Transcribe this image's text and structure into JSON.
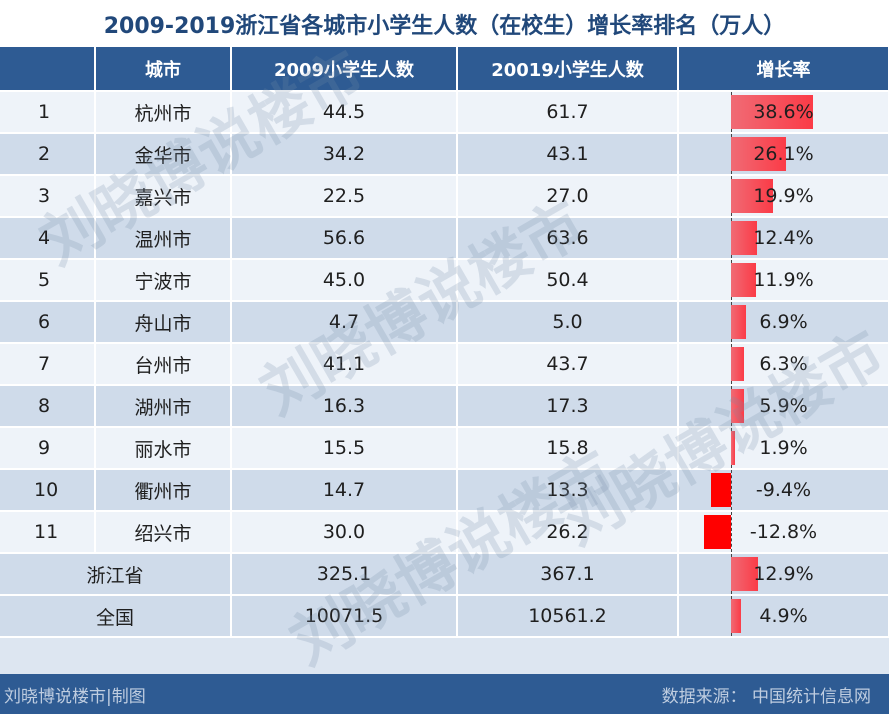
{
  "title": "2009-2019浙江省各城市小学生人数（在校生）增长率排名（万人）",
  "headers": {
    "rank": "",
    "city": "城市",
    "y2009": "2009小学生人数",
    "y2019": "20019小学生人数",
    "rate": "增长率"
  },
  "rows": [
    {
      "rank": "1",
      "city": "杭州市",
      "v2009": "44.5",
      "v2019": "61.7",
      "rate": "38.6%",
      "rate_value": 38.6
    },
    {
      "rank": "2",
      "city": "金华市",
      "v2009": "34.2",
      "v2019": "43.1",
      "rate": "26.1%",
      "rate_value": 26.1
    },
    {
      "rank": "3",
      "city": "嘉兴市",
      "v2009": "22.5",
      "v2019": "27.0",
      "rate": "19.9%",
      "rate_value": 19.9
    },
    {
      "rank": "4",
      "city": "温州市",
      "v2009": "56.6",
      "v2019": "63.6",
      "rate": "12.4%",
      "rate_value": 12.4
    },
    {
      "rank": "5",
      "city": "宁波市",
      "v2009": "45.0",
      "v2019": "50.4",
      "rate": "11.9%",
      "rate_value": 11.9
    },
    {
      "rank": "6",
      "city": "舟山市",
      "v2009": "4.7",
      "v2019": "5.0",
      "rate": "6.9%",
      "rate_value": 6.9
    },
    {
      "rank": "7",
      "city": "台州市",
      "v2009": "41.1",
      "v2019": "43.7",
      "rate": "6.3%",
      "rate_value": 6.3
    },
    {
      "rank": "8",
      "city": "湖州市",
      "v2009": "16.3",
      "v2019": "17.3",
      "rate": "5.9%",
      "rate_value": 5.9
    },
    {
      "rank": "9",
      "city": "丽水市",
      "v2009": "15.5",
      "v2019": "15.8",
      "rate": "1.9%",
      "rate_value": 1.9
    },
    {
      "rank": "10",
      "city": "衢州市",
      "v2009": "14.7",
      "v2019": "13.3",
      "rate": "-9.4%",
      "rate_value": -9.4
    },
    {
      "rank": "11",
      "city": "绍兴市",
      "v2009": "30.0",
      "v2019": "26.2",
      "rate": "-12.8%",
      "rate_value": -12.8
    }
  ],
  "totals": [
    {
      "name": "浙江省",
      "v2009": "325.1",
      "v2019": "367.1",
      "rate": "12.9%",
      "rate_value": 12.9
    },
    {
      "name": "全国",
      "v2009": "10071.5",
      "v2019": "10561.2",
      "rate": "4.9%",
      "rate_value": 4.9
    }
  ],
  "footer": {
    "left": "刘晓博说楼市|制图",
    "right": "数据来源：  中国统计信息网"
  },
  "watermark": "刘晓博说楼市",
  "colors": {
    "header_bg": "#2e5b93",
    "title_text": "#21487a",
    "positive_bar": "#f55560",
    "negative_bar": "#ff0000"
  }
}
